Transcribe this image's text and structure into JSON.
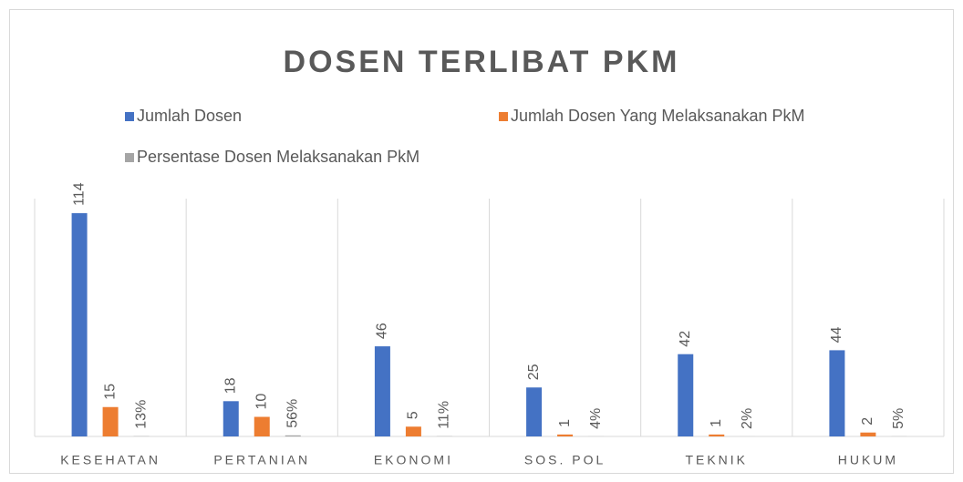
{
  "chart_data": {
    "type": "bar",
    "title": "DOSEN TERLIBAT PKM",
    "categories": [
      "KESEHATAN",
      "PERTANIAN",
      "EKONOMI",
      "SOS. POL",
      "TEKNIK",
      "HUKUM"
    ],
    "series": [
      {
        "name": "Jumlah Dosen",
        "color": "#4472c4",
        "values": [
          114,
          18,
          46,
          25,
          42,
          44
        ]
      },
      {
        "name": "Jumlah Dosen Yang Melaksanakan PkM",
        "color": "#ed7d31",
        "values": [
          15,
          10,
          5,
          1,
          1,
          2
        ]
      },
      {
        "name": "Persentase Dosen Melaksanakan PkM",
        "color": "#a5a5a5",
        "values": [
          0.13,
          0.56,
          0.11,
          0.04,
          0.02,
          0.05
        ],
        "value_labels": [
          "13%",
          "56%",
          "11%",
          "4%",
          "2%",
          "5%"
        ]
      }
    ],
    "ylim": [
      0,
      120
    ],
    "legend": "top"
  }
}
